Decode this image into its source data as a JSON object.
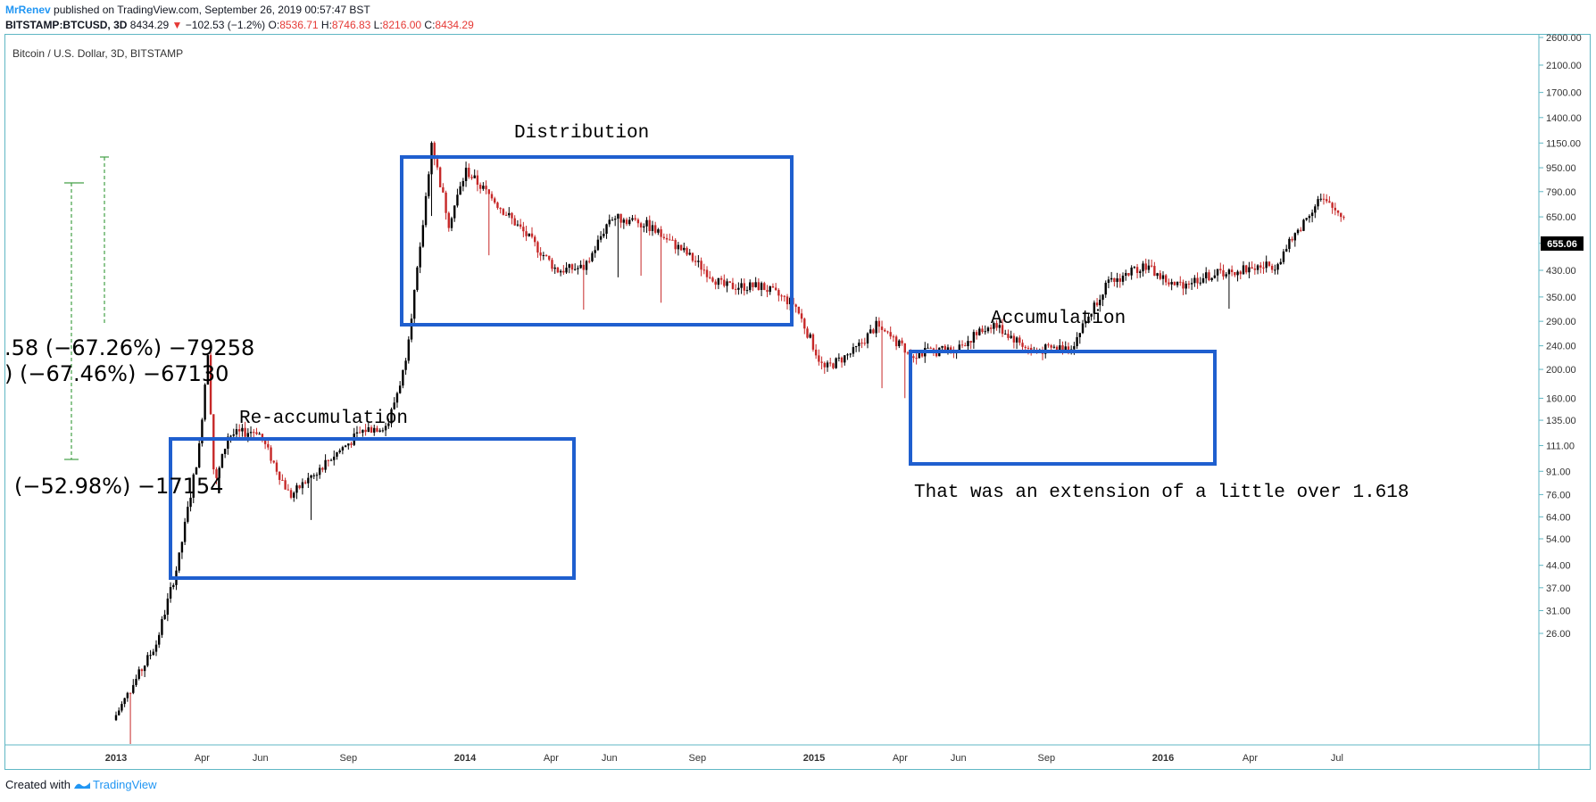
{
  "header": {
    "author": "MrRenev",
    "published": "published on TradingView.com, September 26, 2019 00:57:47 BST",
    "symbol": "BITSTAMP:BTCUSD, 3D",
    "last": "8434.29",
    "change": "−102.53 (−1.2%)",
    "o_label": "O:",
    "o": "8536.71",
    "h_label": "H:",
    "h": "8746.83",
    "l_label": "L:",
    "l": "8216.00",
    "c_label": "C:",
    "c": "8434.29"
  },
  "footer": {
    "created_with": "Created with",
    "brand": "TradingView"
  },
  "chart_data": {
    "type": "candlestick",
    "title": "Bitcoin / U.S. Dollar, 3D, BITSTAMP",
    "y_scale": "log",
    "y_ticks": [
      "2600.00",
      "2100.00",
      "1700.00",
      "1400.00",
      "1150.00",
      "950.00",
      "790.00",
      "650.00",
      "530.00",
      "430.00",
      "350.00",
      "290.00",
      "240.00",
      "200.00",
      "160.00",
      "135.00",
      "111.00",
      "91.00",
      "76.00",
      "64.00",
      "54.00",
      "44.00",
      "37.00",
      "31.00",
      "26.00"
    ],
    "x_ticks": [
      "2013",
      "Apr",
      "Jun",
      "Sep",
      "2014",
      "Apr",
      "Jun",
      "Sep",
      "2015",
      "Apr",
      "Jun",
      "Sep",
      "2016",
      "Apr",
      "Jul"
    ],
    "last_price_label": "655.06",
    "colors": {
      "up": "#000000",
      "down": "#c62828",
      "box": "#1f5fcf",
      "fib": "#43a047",
      "frame": "#5fb7c4"
    },
    "annotations": {
      "distribution": "Distribution",
      "reaccumulation": "Re-accumulation",
      "accumulation": "Accumulation",
      "extension_note": "That was an extension of a little over 1.618",
      "fib1": ".58 (−67.26%) −79258",
      ">fib2": ") (−67.46%) −67130",
      "fib3": "(−52.98%) −17154"
    },
    "series_path": [
      {
        "x": "2013-01-01",
        "y": 13.3
      },
      {
        "x": "2013-02-15",
        "y": 24
      },
      {
        "x": "2013-03-10",
        "y": 45
      },
      {
        "x": "2013-04-01",
        "y": 110
      },
      {
        "x": "2013-04-10",
        "y": 230
      },
      {
        "x": "2013-04-17",
        "y": 80
      },
      {
        "x": "2013-05-01",
        "y": 120
      },
      {
        "x": "2013-06-01",
        "y": 125
      },
      {
        "x": "2013-07-05",
        "y": 75
      },
      {
        "x": "2013-08-15",
        "y": 100
      },
      {
        "x": "2013-09-20",
        "y": 125
      },
      {
        "x": "2013-10-15",
        "y": 130
      },
      {
        "x": "2013-11-01",
        "y": 200
      },
      {
        "x": "2013-11-18",
        "y": 500
      },
      {
        "x": "2013-11-30",
        "y": 1150
      },
      {
        "x": "2013-12-18",
        "y": 620
      },
      {
        "x": "2014-01-05",
        "y": 930
      },
      {
        "x": "2014-02-10",
        "y": 700
      },
      {
        "x": "2014-03-10",
        "y": 560
      },
      {
        "x": "2014-04-10",
        "y": 430
      },
      {
        "x": "2014-05-10",
        "y": 440
      },
      {
        "x": "2014-06-05",
        "y": 650
      },
      {
        "x": "2014-07-10",
        "y": 620
      },
      {
        "x": "2014-08-20",
        "y": 500
      },
      {
        "x": "2014-10-01",
        "y": 380
      },
      {
        "x": "2014-11-10",
        "y": 380
      },
      {
        "x": "2014-12-15",
        "y": 330
      },
      {
        "x": "2015-01-14",
        "y": 200
      },
      {
        "x": "2015-02-15",
        "y": 230
      },
      {
        "x": "2015-03-10",
        "y": 280
      },
      {
        "x": "2015-04-15",
        "y": 225
      },
      {
        "x": "2015-06-01",
        "y": 235
      },
      {
        "x": "2015-07-10",
        "y": 285
      },
      {
        "x": "2015-08-20",
        "y": 230
      },
      {
        "x": "2015-10-01",
        "y": 240
      },
      {
        "x": "2015-11-04",
        "y": 380
      },
      {
        "x": "2015-12-15",
        "y": 450
      },
      {
        "x": "2016-01-15",
        "y": 380
      },
      {
        "x": "2016-03-01",
        "y": 420
      },
      {
        "x": "2016-05-01",
        "y": 450
      },
      {
        "x": "2016-06-15",
        "y": 750
      },
      {
        "x": "2016-07-10",
        "y": 655
      }
    ]
  }
}
